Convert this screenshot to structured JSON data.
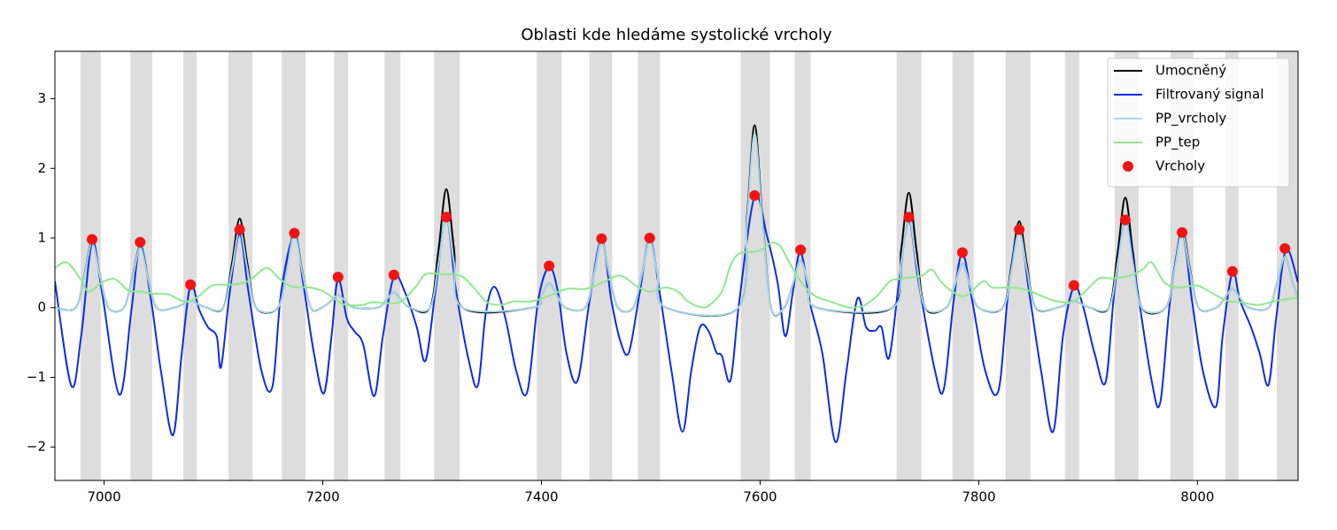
{
  "chart_data": {
    "type": "line",
    "title": "Oblasti kde hledáme systolické vrcholy",
    "xlim": [
      6955,
      8092
    ],
    "ylim": [
      -2.48,
      3.68
    ],
    "xticks": [
      7000,
      7200,
      7400,
      7600,
      7800,
      8000
    ],
    "yticks": [
      {
        "value": -2,
        "label": "−2"
      },
      {
        "value": -1,
        "label": "−1"
      },
      0,
      1,
      2,
      3
    ],
    "grid": false,
    "legend": "upper right",
    "region_color": "#dddddd",
    "shaded_regions": [
      [
        6978.5,
        6997
      ],
      [
        7024,
        7044
      ],
      [
        7072.5,
        7084.7
      ],
      [
        7113.8,
        7135.7
      ],
      [
        7162.5,
        7184.3
      ],
      [
        7210.3,
        7223.2
      ],
      [
        7256.5,
        7271
      ],
      [
        7301.8,
        7325.3
      ],
      [
        7395.8,
        7418.5
      ],
      [
        7443.7,
        7464.7
      ],
      [
        7488.2,
        7508.5
      ],
      [
        7582.2,
        7609
      ],
      [
        7631.7,
        7646.2
      ],
      [
        7724.8,
        7747.5
      ],
      [
        7775.9,
        7795.4
      ],
      [
        7824.5,
        7847.2
      ],
      [
        7878.8,
        7891.8
      ],
      [
        7924.2,
        7946.1
      ],
      [
        7975.2,
        7996.3
      ],
      [
        8025.5,
        8037.6
      ],
      [
        8072.5,
        8092
      ]
    ],
    "series": [
      {
        "name": "Umocněný",
        "type": "line",
        "color": "#000000",
        "x": [
          6955,
          6974,
          6982,
          6989,
          6996,
          7004,
          7018,
          7026,
          7033,
          7040,
          7048,
          7064,
          7072,
          7079,
          7086,
          7094,
          7109,
          7117,
          7124,
          7131,
          7139,
          7159,
          7167,
          7174,
          7181,
          7189,
          7199,
          7207,
          7214,
          7221,
          7229,
          7250,
          7258,
          7265,
          7272,
          7280,
          7298,
          7306,
          7313,
          7320,
          7328,
          7392,
          7400,
          7407,
          7414,
          7422,
          7440,
          7448,
          7455,
          7462,
          7470,
          7484,
          7492,
          7499,
          7506,
          7514,
          7580,
          7588,
          7595,
          7602,
          7610,
          7622,
          7630,
          7637,
          7644,
          7652,
          7721,
          7729,
          7736,
          7743,
          7751,
          7770,
          7778,
          7785,
          7792,
          7800,
          7822,
          7830,
          7837,
          7844,
          7852,
          7872,
          7880,
          7887,
          7894,
          7902,
          7919,
          7927,
          7934,
          7941,
          7949,
          7971,
          7979,
          7986,
          7993,
          8001,
          8017,
          8025,
          8032,
          8039,
          8047,
          8065,
          8073,
          8080,
          8087,
          8095
        ],
        "values": [
          0,
          0,
          0.48,
          0.95,
          0.48,
          0,
          0,
          0.44,
          0.88,
          0.44,
          0,
          0,
          0.05,
          0.1,
          0.05,
          0,
          0,
          0.64,
          1.28,
          0.64,
          0,
          0,
          0.55,
          1.1,
          0.55,
          0,
          0,
          0.09,
          0.18,
          0.09,
          0,
          0,
          0.11,
          0.22,
          0.11,
          0,
          0,
          0.85,
          1.7,
          0.85,
          0,
          0,
          0.18,
          0.35,
          0.18,
          0,
          0,
          0.48,
          0.95,
          0.48,
          0,
          0,
          0.49,
          0.97,
          0.49,
          0,
          0,
          1.31,
          2.62,
          1.31,
          0,
          0,
          0.34,
          0.68,
          0.34,
          0,
          0,
          0.83,
          1.65,
          0.83,
          0,
          0,
          0.32,
          0.63,
          0.32,
          0,
          0,
          0.62,
          1.24,
          0.62,
          0,
          0,
          0.05,
          0.1,
          0.05,
          0,
          0,
          0.79,
          1.58,
          0.79,
          0,
          0,
          0.57,
          1.14,
          0.57,
          0,
          0,
          0.14,
          0.27,
          0.14,
          0,
          0,
          0.37,
          0.73,
          0.37,
          0
        ]
      },
      {
        "name": "Filtrovaný signal",
        "type": "line",
        "color": "#0f2be6",
        "x": [
          6955,
          6970,
          6979,
          6989,
          6998,
          7014,
          7025,
          7033,
          7043,
          7052,
          7063,
          7071,
          7079,
          7087,
          7095,
          7103,
          7107,
          7115,
          7124,
          7132,
          7144,
          7154,
          7162,
          7174,
          7182,
          7192,
          7201,
          7208,
          7214,
          7222,
          7229,
          7237,
          7247,
          7255,
          7265,
          7275,
          7286,
          7294,
          7303,
          7313,
          7322,
          7334,
          7342,
          7349,
          7357,
          7367,
          7377,
          7387,
          7397,
          7407,
          7415,
          7423,
          7433,
          7444,
          7455,
          7464,
          7472,
          7480,
          7490,
          7499,
          7508,
          7519,
          7529,
          7537,
          7545,
          7553,
          7560,
          7565,
          7573,
          7581,
          7595,
          7606,
          7616,
          7623,
          7630,
          7637,
          7646,
          7657,
          7669,
          7679,
          7689,
          7697,
          7705,
          7711,
          7718,
          7727,
          7736,
          7745,
          7760,
          7768,
          7777,
          7785,
          7794,
          7806,
          7818,
          7827,
          7837,
          7846,
          7857,
          7868,
          7877,
          7887,
          7895,
          7906,
          7916,
          7924,
          7934,
          7944,
          7958,
          7966,
          7975,
          7986,
          7995,
          8005,
          8017,
          8023,
          8032,
          8039,
          8049,
          8057,
          8065,
          8072,
          8081,
          8092
        ],
        "values": [
          0.38,
          -1.12,
          -0.41,
          0.93,
          0.23,
          -1.25,
          -0.03,
          0.89,
          0.1,
          -0.91,
          -1.83,
          -0.66,
          0.32,
          -0.03,
          -0.28,
          -0.41,
          -0.85,
          0.23,
          1.05,
          0.23,
          -0.91,
          -1.13,
          0.23,
          1.04,
          0.36,
          -0.66,
          -1.23,
          -0.41,
          0.42,
          -0.15,
          -0.34,
          -0.53,
          -1.27,
          -0.41,
          0.44,
          0.23,
          -0.28,
          -0.76,
          0.23,
          1.28,
          0.23,
          -0.79,
          -1.11,
          -0.09,
          0.3,
          -0.15,
          -0.91,
          -1.21,
          0.1,
          0.58,
          0.23,
          -0.66,
          -1.05,
          0.1,
          0.97,
          0.1,
          -0.47,
          -0.64,
          0.23,
          0.99,
          0.23,
          -0.91,
          -1.78,
          -0.91,
          -0.28,
          -0.34,
          -0.64,
          -0.69,
          -1.04,
          0.1,
          1.6,
          1.05,
          0.36,
          -0.41,
          0.23,
          0.8,
          0.04,
          -0.66,
          -1.93,
          -0.91,
          0.13,
          -0.28,
          -0.33,
          -0.28,
          -0.72,
          0.36,
          1.25,
          0.36,
          -0.91,
          -1.17,
          0.1,
          0.78,
          0.1,
          -0.91,
          -1.19,
          0.23,
          1.09,
          0.23,
          -0.91,
          -1.78,
          -0.41,
          0.3,
          0.04,
          -0.66,
          -1.07,
          0.23,
          1.23,
          0.36,
          -1.04,
          -1.36,
          0.1,
          1.05,
          0.1,
          -0.91,
          -1.42,
          -0.41,
          0.51,
          0.1,
          -0.28,
          -0.66,
          -1.11,
          -0.15,
          0.83,
          0.36
        ]
      },
      {
        "name": "PP_vrcholy",
        "type": "line",
        "color": "#a8d8e6",
        "x": [
          6955,
          6974,
          6982,
          6989,
          6996,
          7004,
          7018,
          7026,
          7033,
          7040,
          7048,
          7064,
          7072,
          7079,
          7086,
          7094,
          7109,
          7117,
          7124,
          7131,
          7139,
          7159,
          7167,
          7174,
          7181,
          7189,
          7199,
          7207,
          7214,
          7221,
          7229,
          7250,
          7258,
          7265,
          7272,
          7280,
          7298,
          7306,
          7313,
          7320,
          7328,
          7392,
          7400,
          7407,
          7414,
          7422,
          7440,
          7448,
          7455,
          7462,
          7470,
          7484,
          7492,
          7499,
          7506,
          7514,
          7580,
          7588,
          7595,
          7602,
          7610,
          7622,
          7630,
          7637,
          7644,
          7652,
          7721,
          7729,
          7736,
          7743,
          7751,
          7770,
          7778,
          7785,
          7792,
          7800,
          7822,
          7830,
          7837,
          7844,
          7852,
          7872,
          7880,
          7887,
          7894,
          7902,
          7919,
          7927,
          7934,
          7941,
          7949,
          7971,
          7979,
          7986,
          7993,
          8001,
          8017,
          8025,
          8032,
          8039,
          8047,
          8065,
          8073,
          8080,
          8087,
          8095
        ],
        "values": [
          0,
          0,
          0.47,
          0.93,
          0.47,
          0,
          0,
          0.43,
          0.86,
          0.43,
          0,
          0,
          0.05,
          0.1,
          0.05,
          0,
          0,
          0.56,
          1.12,
          0.56,
          0,
          0,
          0.53,
          1.05,
          0.53,
          0,
          0,
          0.09,
          0.18,
          0.09,
          0,
          0,
          0.11,
          0.22,
          0.11,
          0,
          0,
          0.65,
          1.3,
          0.65,
          0,
          0,
          0.18,
          0.35,
          0.18,
          0,
          0,
          0.48,
          0.95,
          0.48,
          0,
          0,
          0.49,
          0.97,
          0.49,
          0,
          0,
          1.25,
          2.5,
          1.25,
          0,
          0,
          0.34,
          0.68,
          0.34,
          0,
          0,
          0.65,
          1.3,
          0.65,
          0,
          0,
          0.32,
          0.63,
          0.32,
          0,
          0,
          0.55,
          1.1,
          0.55,
          0,
          0,
          0.05,
          0.1,
          0.05,
          0,
          0,
          0.63,
          1.25,
          0.63,
          0,
          0,
          0.54,
          1.08,
          0.54,
          0,
          0,
          0.14,
          0.27,
          0.14,
          0,
          0,
          0.37,
          0.73,
          0.37,
          0
        ]
      },
      {
        "name": "PP_tep",
        "type": "line",
        "color": "#90e890",
        "x": [
          6955,
          6966,
          6978,
          6986,
          6998,
          7010,
          7022,
          7034,
          7047,
          7059,
          7071,
          7079,
          7087,
          7099,
          7115,
          7132,
          7148,
          7160,
          7172,
          7188,
          7201,
          7213,
          7221,
          7237,
          7245,
          7261,
          7273,
          7286,
          7294,
          7310,
          7326,
          7338,
          7350,
          7363,
          7375,
          7391,
          7407,
          7423,
          7440,
          7456,
          7472,
          7488,
          7500,
          7513,
          7525,
          7533,
          7545,
          7553,
          7565,
          7573,
          7581,
          7594,
          7602,
          7610,
          7618,
          7626,
          7638,
          7650,
          7662,
          7675,
          7683,
          7695,
          7707,
          7719,
          7731,
          7748,
          7757,
          7765,
          7776,
          7788,
          7804,
          7812,
          7829,
          7845,
          7857,
          7869,
          7885,
          7897,
          7910,
          7922,
          7938,
          7950,
          7958,
          7970,
          7983,
          7999,
          8011,
          8027,
          8039,
          8056,
          8072,
          8092
        ],
        "values": [
          0.57,
          0.65,
          0.42,
          0.23,
          0.36,
          0.41,
          0.25,
          0.23,
          0.2,
          0.19,
          0.1,
          0.1,
          0.17,
          0.32,
          0.33,
          0.38,
          0.57,
          0.42,
          0.3,
          0.29,
          0.23,
          0.1,
          0.04,
          0.04,
          0.08,
          0.06,
          0.1,
          0.32,
          0.48,
          0.48,
          0.46,
          0.29,
          0.08,
          0.04,
          0.09,
          0.09,
          0.17,
          0.27,
          0.27,
          0.36,
          0.46,
          0.3,
          0.23,
          0.29,
          0.23,
          0.1,
          0.01,
          0.03,
          0.23,
          0.61,
          0.78,
          0.8,
          0.84,
          0.93,
          0.89,
          0.67,
          0.36,
          0.17,
          0.1,
          0.03,
          0.0,
          0.03,
          0.17,
          0.38,
          0.42,
          0.46,
          0.55,
          0.38,
          0.23,
          0.17,
          0.38,
          0.29,
          0.29,
          0.25,
          0.17,
          0.1,
          0.08,
          0.23,
          0.42,
          0.42,
          0.46,
          0.55,
          0.65,
          0.36,
          0.29,
          0.32,
          0.23,
          0.1,
          0.08,
          0.04,
          0.1,
          0.14
        ]
      },
      {
        "name": "Vrcholy",
        "type": "scatter",
        "color": "#f01414",
        "x": [
          6989,
          7033,
          7079,
          7124,
          7174,
          7214,
          7265,
          7313,
          7407,
          7455,
          7499,
          7595,
          7637,
          7736,
          7785,
          7837,
          7887,
          7934,
          7986,
          8032,
          8080
        ],
        "values": [
          0.98,
          0.94,
          0.33,
          1.12,
          1.07,
          0.44,
          0.47,
          1.3,
          0.6,
          0.99,
          1.0,
          1.61,
          0.83,
          1.3,
          0.79,
          1.12,
          0.32,
          1.26,
          1.08,
          0.52,
          0.85
        ]
      }
    ]
  }
}
